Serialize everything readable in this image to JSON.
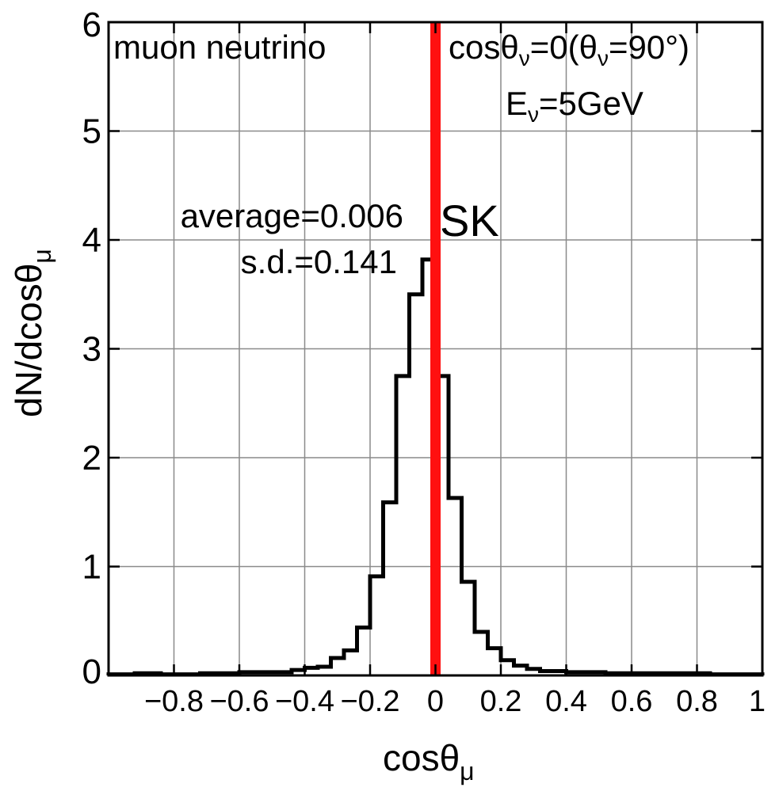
{
  "chart_data": {
    "type": "histogram",
    "xlabel": "cosθ",
    "xlabel_sub": "μ",
    "ylabel": "dN/dcosθ",
    "ylabel_sub": "μ",
    "xlim": [
      -1,
      1
    ],
    "ylim": [
      0,
      6
    ],
    "grid": true,
    "x_ticks": [
      -0.8,
      -0.6,
      -0.4,
      -0.2,
      0,
      0.2,
      0.4,
      0.6,
      0.8,
      1
    ],
    "x_tick_labels": [
      "−0.8",
      "−0.6",
      "−0.4",
      "−0.2",
      "0",
      "0.2",
      "0.4",
      "0.6",
      "0.8",
      "1"
    ],
    "y_ticks": [
      0,
      1,
      2,
      3,
      4,
      5,
      6
    ],
    "y_tick_labels": [
      "0",
      "1",
      "2",
      "3",
      "4",
      "5",
      "6"
    ],
    "bin_width": 0.04,
    "bin_edges_start": -1,
    "histogram_values": [
      0.01,
      0.01,
      0.02,
      0.02,
      0.01,
      0.01,
      0.01,
      0.02,
      0.02,
      0.02,
      0.03,
      0.03,
      0.03,
      0.03,
      0.05,
      0.07,
      0.08,
      0.16,
      0.23,
      0.44,
      0.91,
      1.59,
      2.75,
      3.5,
      3.82,
      2.75,
      1.63,
      0.86,
      0.4,
      0.25,
      0.14,
      0.09,
      0.06,
      0.04,
      0.04,
      0.03,
      0.03,
      0.03,
      0.02,
      0.02,
      0.02,
      0.02,
      0.02,
      0.02,
      0.02,
      0.02,
      0.01,
      0.01,
      0.01,
      0.01
    ],
    "reference_line": {
      "x": 0,
      "label": "SK",
      "color": "#ff1010"
    },
    "annotations": {
      "particle": "muon neutrino",
      "angle_prefix": "cosθ",
      "angle_sub": "ν",
      "angle_mid": "=0(θ",
      "angle_sub2": "ν",
      "angle_suffix": "=90°)",
      "energy_prefix": "E",
      "energy_sub": "ν",
      "energy_suffix": "=5GeV",
      "average": "average=0.006",
      "sd": "s.d.=0.141"
    }
  }
}
